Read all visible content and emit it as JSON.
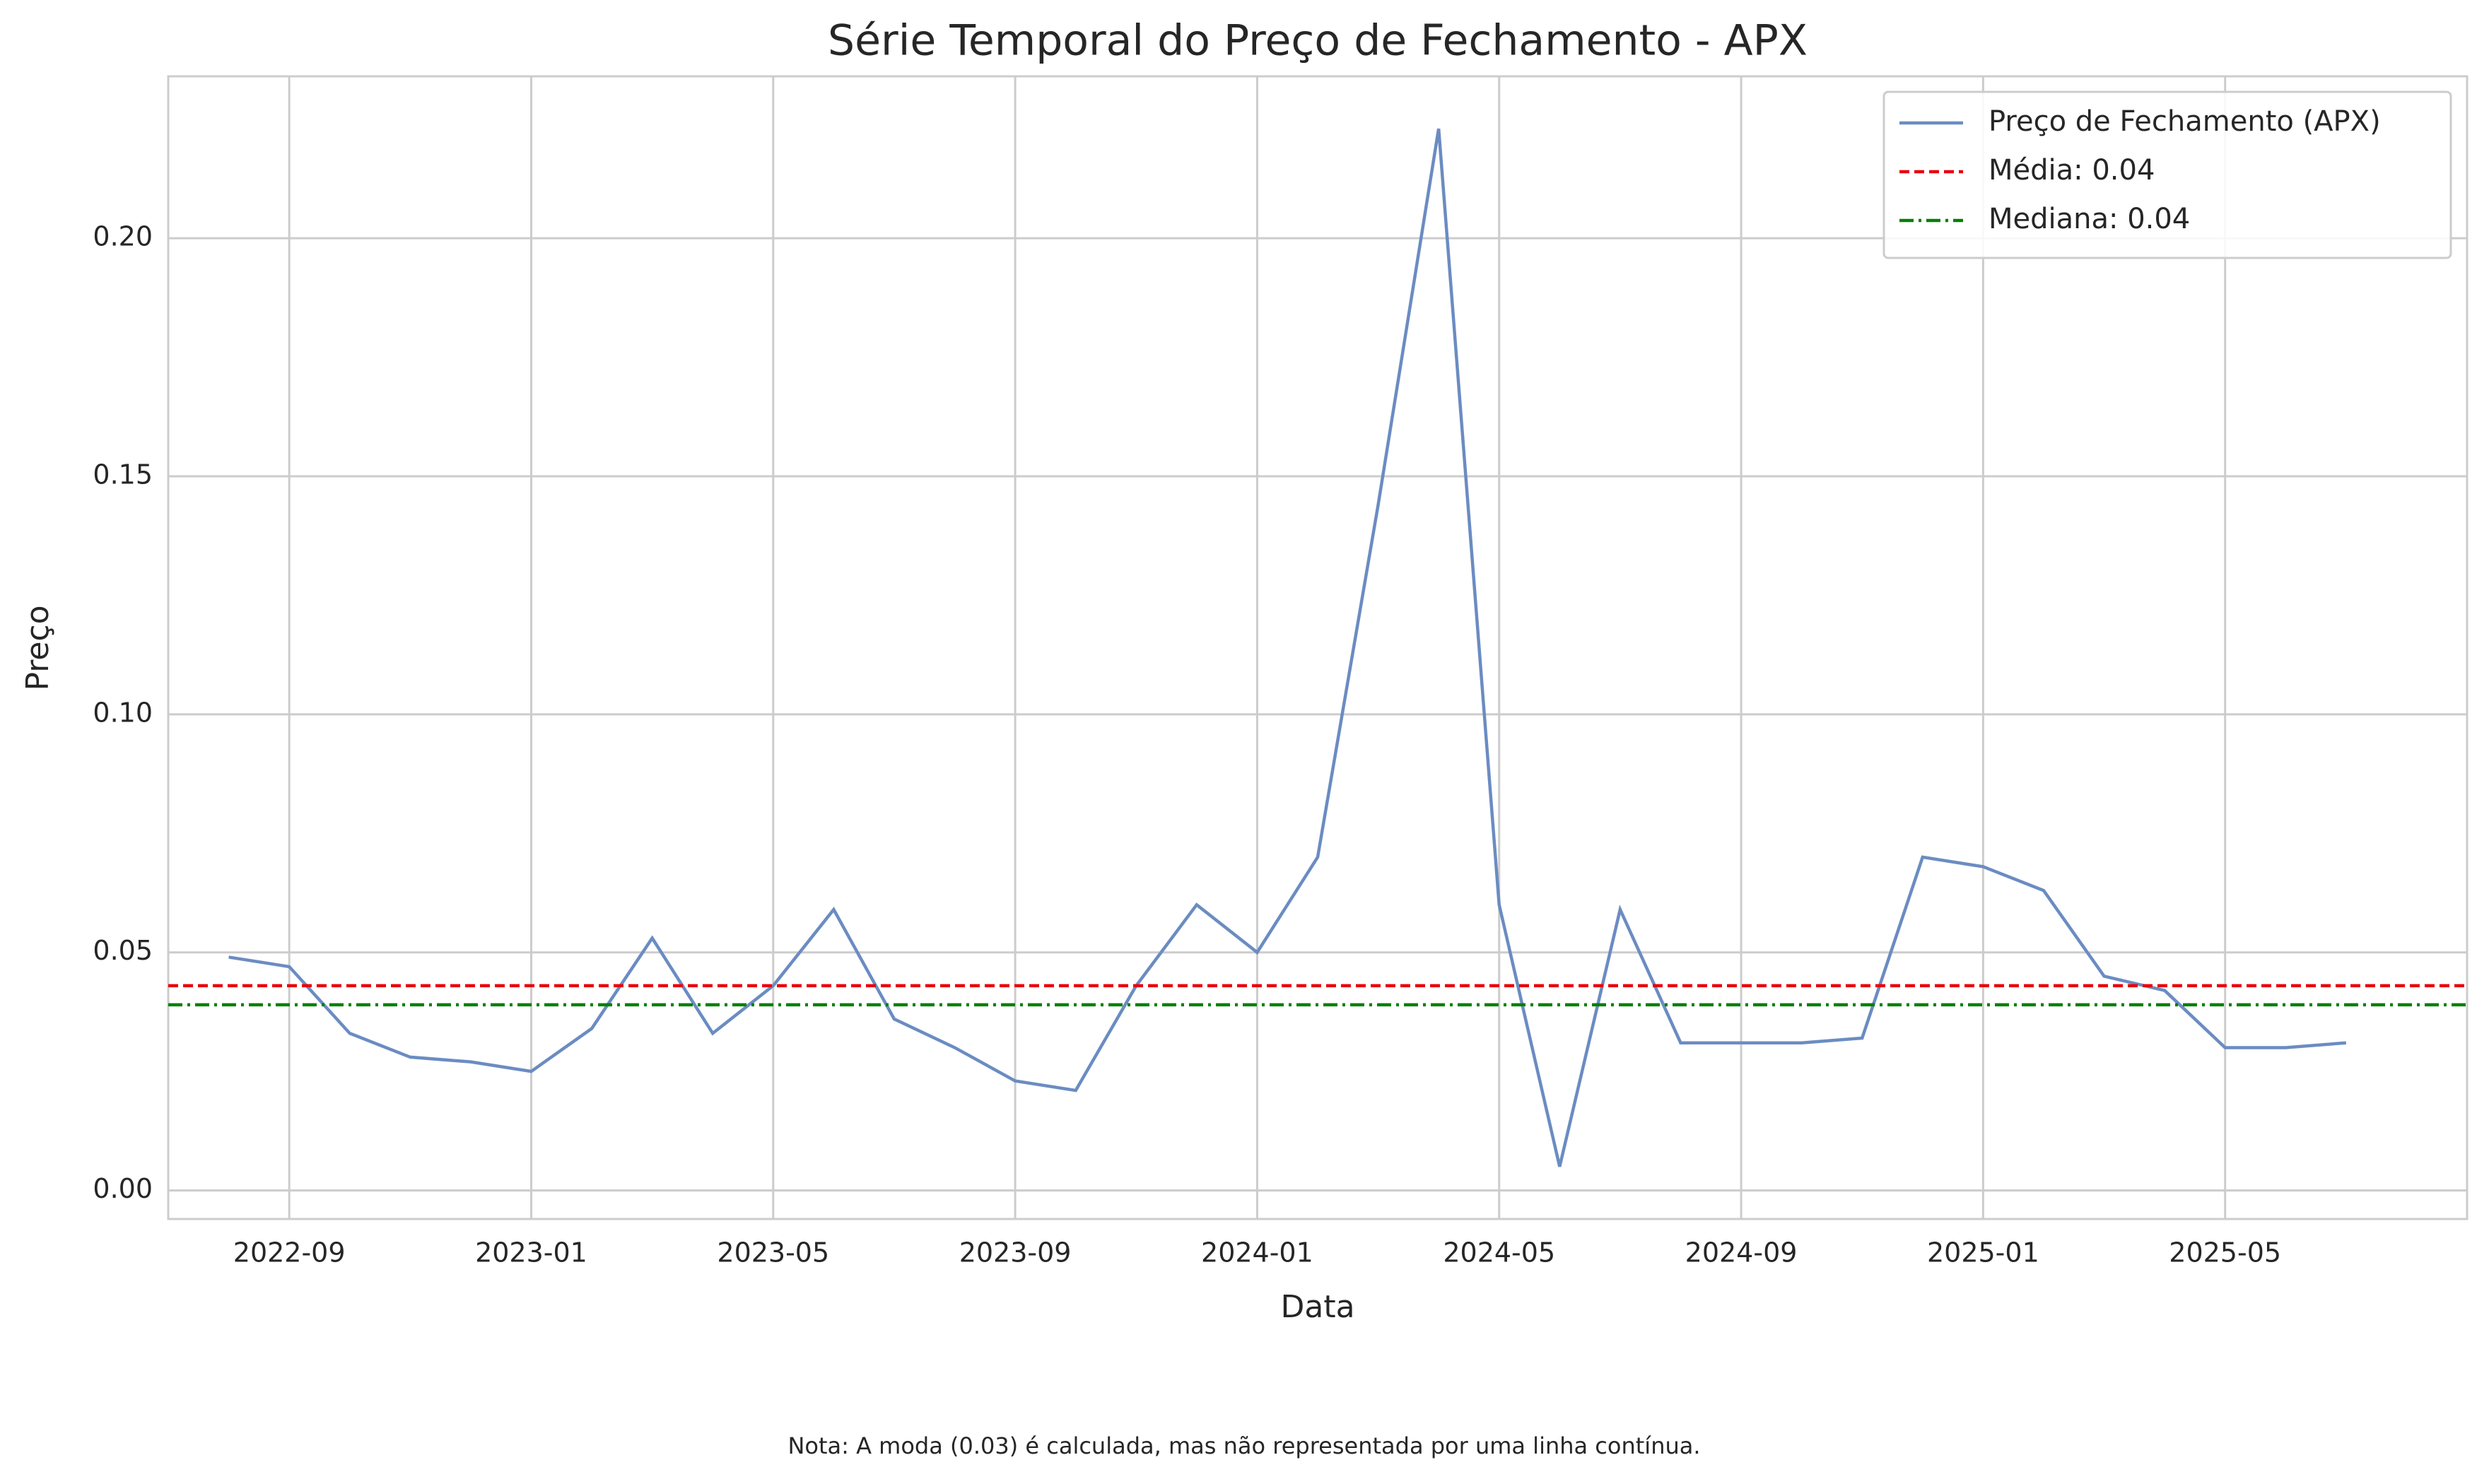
{
  "chart_data": {
    "type": "line",
    "title": "Série Temporal do Preço de Fechamento - APX",
    "xlabel": "Data",
    "ylabel": "Preço",
    "x": [
      "2022-08",
      "2022-09",
      "2022-10",
      "2022-11",
      "2022-12",
      "2023-01",
      "2023-02",
      "2023-03",
      "2023-04",
      "2023-05",
      "2023-06",
      "2023-07",
      "2023-08",
      "2023-09",
      "2023-10",
      "2023-11",
      "2023-12",
      "2024-01",
      "2024-02",
      "2024-03",
      "2024-04",
      "2024-05",
      "2024-06",
      "2024-07",
      "2024-08",
      "2024-09",
      "2024-10",
      "2024-11",
      "2024-12",
      "2025-01",
      "2025-02",
      "2025-03",
      "2025-04",
      "2025-05",
      "2025-06",
      "2025-07"
    ],
    "series": [
      {
        "name": "Preço de Fechamento (APX)",
        "color": "#6b8cc2",
        "values": [
          0.049,
          0.047,
          0.033,
          0.028,
          0.027,
          0.025,
          0.034,
          0.053,
          0.033,
          0.043,
          0.059,
          0.036,
          0.03,
          0.023,
          0.021,
          0.043,
          0.06,
          0.05,
          0.07,
          0.144,
          0.223,
          0.06,
          0.005,
          0.059,
          0.031,
          0.031,
          0.031,
          0.032,
          0.07,
          0.068,
          0.063,
          0.045,
          0.042,
          0.03,
          0.03,
          0.031
        ]
      }
    ],
    "hlines": [
      {
        "name": "Média: 0.04",
        "value": 0.043,
        "color": "#e8000b",
        "style": "dashed"
      },
      {
        "name": "Mediana: 0.04",
        "value": 0.039,
        "color": "#008000",
        "style": "dashdot"
      }
    ],
    "xlim": [
      "2022-07",
      "2025-09"
    ],
    "xticks": [
      "2022-09",
      "2023-01",
      "2023-05",
      "2023-09",
      "2024-01",
      "2024-05",
      "2024-09",
      "2025-01",
      "2025-05"
    ],
    "ylim": [
      -0.006,
      0.234
    ],
    "yticks": [
      {
        "value": 0,
        "label": "0.00"
      },
      0.05,
      {
        "value": 0.1,
        "label": "0.10"
      },
      0.15,
      {
        "value": 0.2,
        "label": "0.20"
      }
    ],
    "grid": true,
    "legend": "upper right",
    "note": "Nota: A moda (0.03) é calculada, mas não representada por uma linha contínua."
  }
}
